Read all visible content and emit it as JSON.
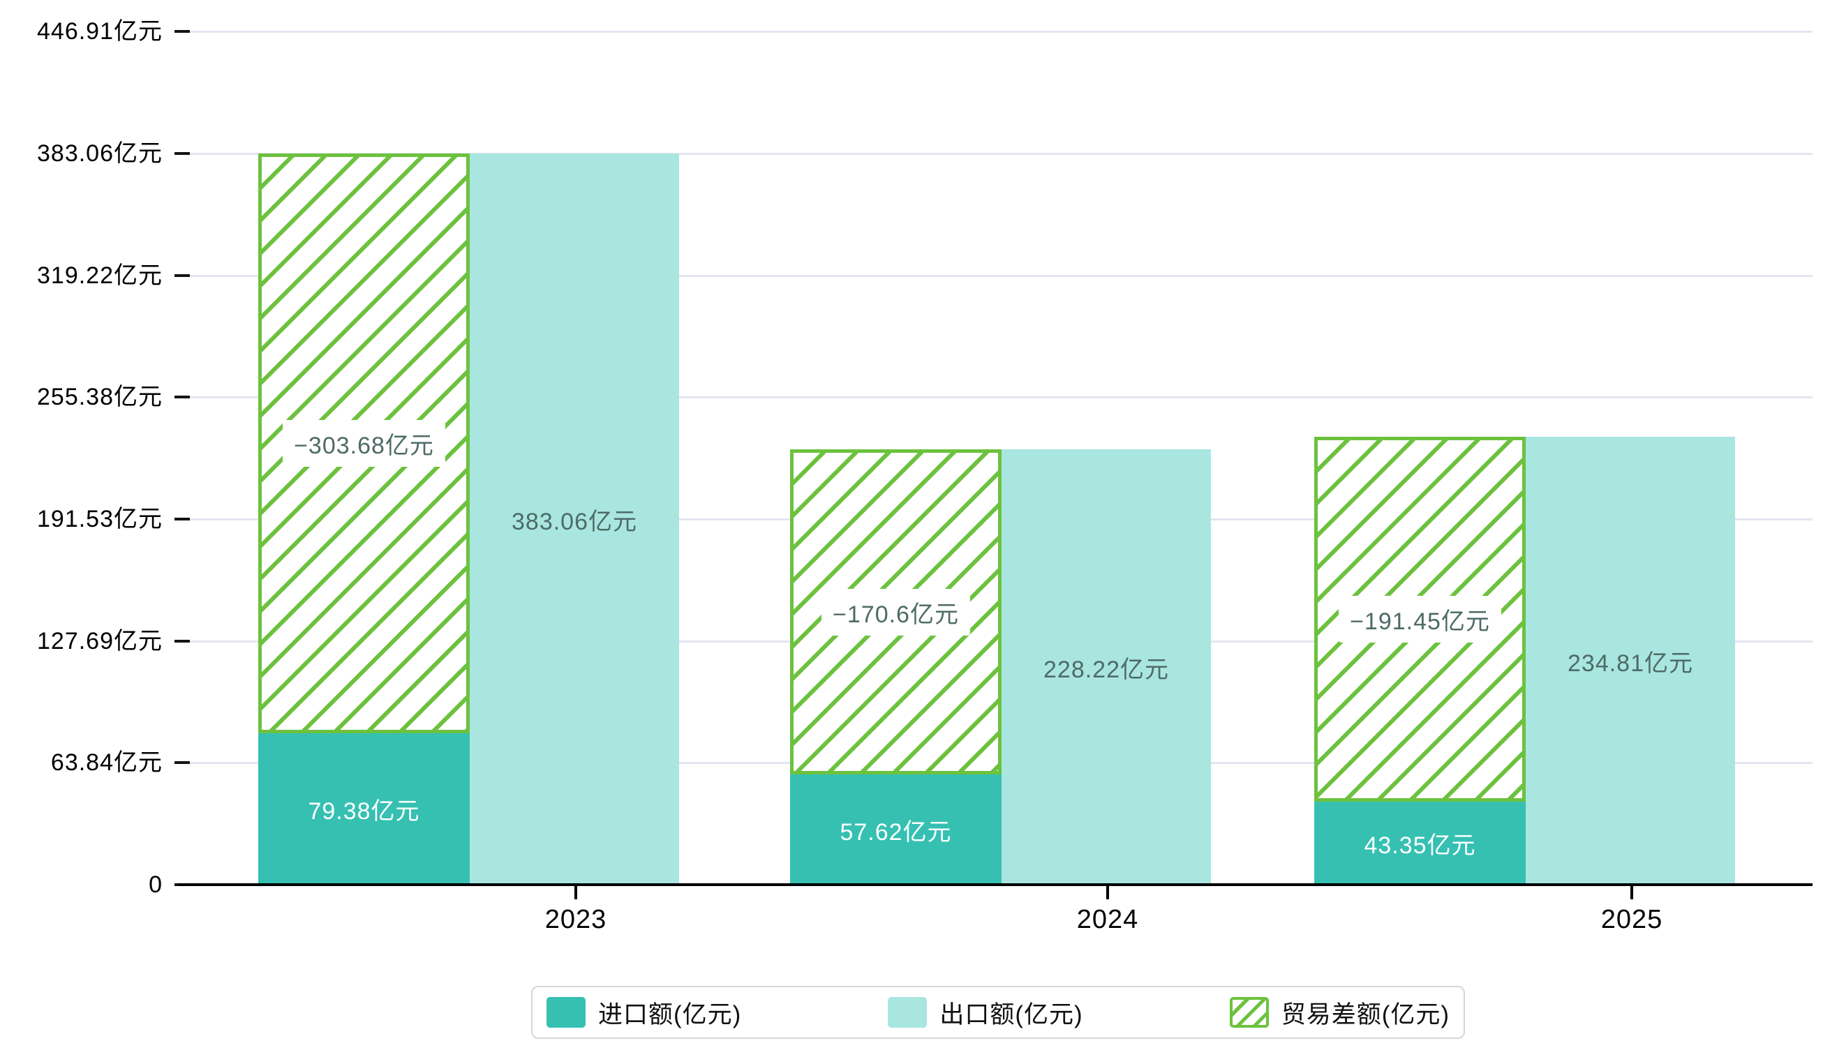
{
  "chart_data": {
    "type": "bar",
    "title": "",
    "categories": [
      "2023",
      "2024",
      "2025"
    ],
    "series": [
      {
        "name": "进口额(亿元)",
        "role": "import",
        "values": [
          79.38,
          57.62,
          43.35
        ],
        "labels": [
          "79.38亿元",
          "57.62亿元",
          "43.35亿元"
        ],
        "color": "#35c0b2",
        "label_color": "#ffffff",
        "style": "solid"
      },
      {
        "name": "出口额(亿元)",
        "role": "export",
        "values": [
          383.06,
          228.22,
          234.81
        ],
        "labels": [
          "383.06亿元",
          "228.22亿元",
          "234.81亿元"
        ],
        "color": "#a9e6e0",
        "label_color": "#4e6b66",
        "style": "solid"
      },
      {
        "name": "贸易差额(亿元)",
        "role": "trade-balance",
        "values": [
          -303.68,
          -170.6,
          -191.45
        ],
        "labels": [
          "−303.68亿元",
          "−170.6亿元",
          "−191.45亿元"
        ],
        "color": "#6cc23e",
        "label_color": "#4e6b66",
        "style": "hatched",
        "stacked_on": "进口额(亿元)",
        "note": "drawn as absolute value stacked on top of import bar"
      }
    ],
    "y_axis": {
      "unit": "亿元",
      "min": 0,
      "max": 446.91,
      "grid": true,
      "ticks": [
        {
          "value": 0,
          "label": "0"
        },
        {
          "value": 63.84,
          "label": "63.84亿元"
        },
        {
          "value": 127.69,
          "label": "127.69亿元"
        },
        {
          "value": 191.53,
          "label": "191.53亿元"
        },
        {
          "value": 255.38,
          "label": "255.38亿元"
        },
        {
          "value": 319.22,
          "label": "319.22亿元"
        },
        {
          "value": 383.06,
          "label": "383.06亿元"
        },
        {
          "value": 446.91,
          "label": "446.91亿元"
        }
      ]
    },
    "legend": {
      "position": "bottom",
      "items": [
        "进口额(亿元)",
        "出口额(亿元)",
        "贸易差额(亿元)"
      ]
    },
    "colors": {
      "grid_line": "#e2e6f1",
      "axis_line": "#000000",
      "axis_label": "#000000",
      "import_teal": "#35c0b2",
      "export_aqua": "#a9e6e0",
      "hatch_green": "#6cc23e",
      "value_label_dark": "#4e6b66",
      "value_label_light": "#ffffff",
      "legend_border": "#d6d6d6",
      "background": "#ffffff"
    }
  }
}
